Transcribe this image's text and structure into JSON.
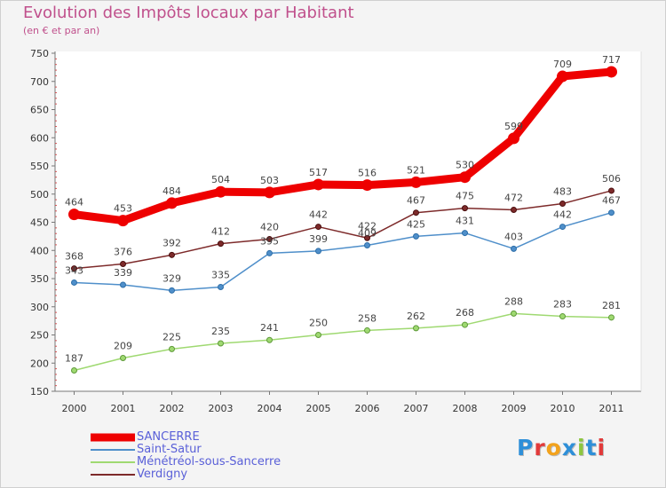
{
  "title": "Evolution des Impôts locaux par Habitant",
  "subtitle": "(en € et par an)",
  "logo_text": "Proxiti",
  "chart_data": {
    "type": "line",
    "title": "Evolution des Impôts locaux par Habitant",
    "subtitle": "(en € et par an)",
    "x": [
      "2000",
      "2001",
      "2002",
      "2003",
      "2004",
      "2005",
      "2006",
      "2007",
      "2008",
      "2009",
      "2010",
      "2011"
    ],
    "y_ticks": [
      "750",
      "700",
      "650",
      "600",
      "550",
      "500",
      "450",
      "400",
      "350",
      "300",
      "250",
      "200",
      "150"
    ],
    "ylim": [
      150,
      750
    ],
    "grid": false,
    "legend_position": "bottom-left",
    "series": [
      {
        "name": "SANCERRE",
        "color": "#ee0000",
        "values": [
          464,
          453,
          484,
          504,
          503,
          517,
          516,
          521,
          530,
          599,
          709,
          717
        ],
        "labels": [
          "464",
          "453",
          "484",
          "504",
          "503",
          "517",
          "516",
          "521",
          "530",
          "599",
          "709",
          "717"
        ]
      },
      {
        "name": "Saint-Satur",
        "color": "#4f8fca",
        "values": [
          343,
          339,
          329,
          335,
          395,
          399,
          409,
          425,
          431,
          403,
          442,
          467
        ],
        "labels": [
          "343",
          "339",
          "329",
          "335",
          "395",
          "399",
          "409",
          "425",
          "431",
          "403",
          "442",
          "467"
        ]
      },
      {
        "name": "Ménétréol-sous-Sancerre",
        "color": "#9fd971",
        "values": [
          187,
          209,
          225,
          235,
          241,
          250,
          258,
          262,
          268,
          288,
          283,
          281
        ],
        "labels": [
          "187",
          "209",
          "225",
          "235",
          "241",
          "250",
          "258",
          "262",
          "268",
          "288",
          "283",
          "281"
        ]
      },
      {
        "name": "Verdigny",
        "color": "#7d2a2a",
        "values": [
          368,
          376,
          392,
          412,
          420,
          442,
          422,
          467,
          475,
          472,
          483,
          506
        ],
        "labels": [
          "368",
          "376",
          "392",
          "412",
          "420",
          "442",
          "422",
          "467",
          "475",
          "472",
          "483",
          "506"
        ]
      }
    ]
  }
}
